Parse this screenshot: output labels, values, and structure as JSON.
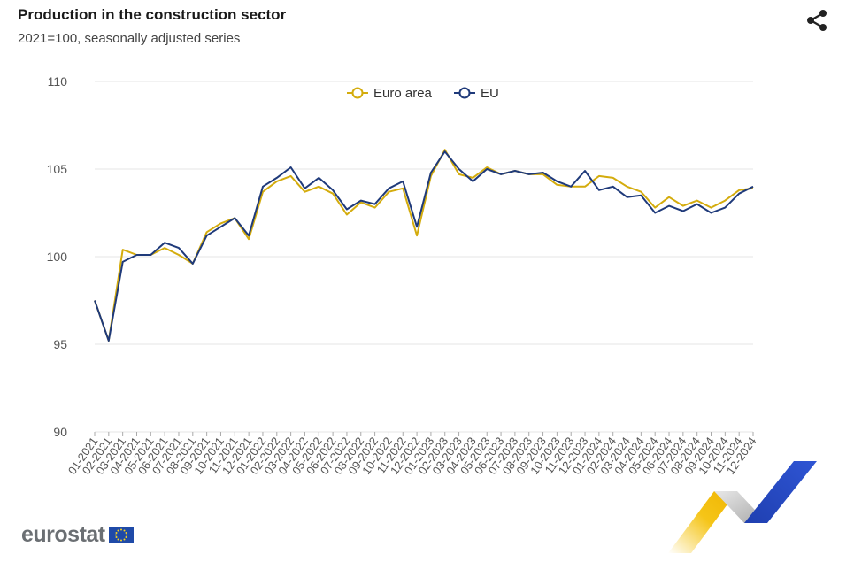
{
  "header": {
    "title": "Production in the construction sector",
    "subtitle": "2021=100, seasonally adjusted series"
  },
  "footer": {
    "logo_text": "eurostat"
  },
  "icons": {
    "share": "share-icon",
    "flag": "eu-flag-icon"
  },
  "colors": {
    "euro_area": "#d4ac0d",
    "eu": "#1f3a7a",
    "grid": "#e6e6e6",
    "axis_text": "#555555"
  },
  "chart_data": {
    "type": "line",
    "title": "Production in the construction sector",
    "subtitle": "2021=100, seasonally adjusted series",
    "xlabel": "",
    "ylabel": "",
    "ylim": [
      90,
      110
    ],
    "yticks": [
      90,
      95,
      100,
      105,
      110
    ],
    "grid": true,
    "legend_position": "top-center",
    "x": [
      "01-2021",
      "02-2021",
      "03-2021",
      "04-2021",
      "05-2021",
      "06-2021",
      "07-2021",
      "08-2021",
      "09-2021",
      "10-2021",
      "11-2021",
      "12-2021",
      "01-2022",
      "02-2022",
      "03-2022",
      "04-2022",
      "05-2022",
      "06-2022",
      "07-2022",
      "08-2022",
      "09-2022",
      "10-2022",
      "11-2022",
      "12-2022",
      "01-2023",
      "02-2023",
      "03-2023",
      "04-2023",
      "05-2023",
      "06-2023",
      "07-2023",
      "08-2023",
      "09-2023",
      "10-2023",
      "11-2023",
      "12-2023",
      "01-2024",
      "02-2024",
      "03-2024",
      "04-2024",
      "05-2024",
      "06-2024",
      "07-2024",
      "08-2024",
      "09-2024",
      "10-2024",
      "11-2024",
      "12-2024"
    ],
    "series": [
      {
        "name": "Euro area",
        "color": "#d4ac0d",
        "values": [
          97.5,
          95.2,
          100.4,
          100.1,
          100.1,
          100.5,
          100.1,
          99.6,
          101.4,
          101.9,
          102.2,
          101.0,
          103.7,
          104.3,
          104.6,
          103.7,
          104.0,
          103.6,
          102.4,
          103.1,
          102.8,
          103.7,
          103.9,
          101.2,
          104.6,
          106.1,
          104.7,
          104.5,
          105.1,
          104.7,
          104.9,
          104.7,
          104.7,
          104.1,
          104.0,
          104.0,
          104.6,
          104.5,
          104.0,
          103.7,
          102.8,
          103.4,
          102.9,
          103.2,
          102.8,
          103.2,
          103.8,
          103.9
        ]
      },
      {
        "name": "EU",
        "color": "#1f3a7a",
        "values": [
          97.5,
          95.2,
          99.7,
          100.1,
          100.1,
          100.8,
          100.5,
          99.6,
          101.2,
          101.7,
          102.2,
          101.2,
          104.0,
          104.5,
          105.1,
          103.9,
          104.5,
          103.8,
          102.7,
          103.2,
          103.0,
          103.9,
          104.3,
          101.7,
          104.8,
          106.0,
          105.0,
          104.3,
          105.0,
          104.7,
          104.9,
          104.7,
          104.8,
          104.3,
          104.0,
          104.9,
          103.8,
          104.0,
          103.4,
          103.5,
          102.5,
          102.9,
          102.6,
          103.0,
          102.5,
          102.8,
          103.6,
          104.0
        ]
      }
    ]
  }
}
